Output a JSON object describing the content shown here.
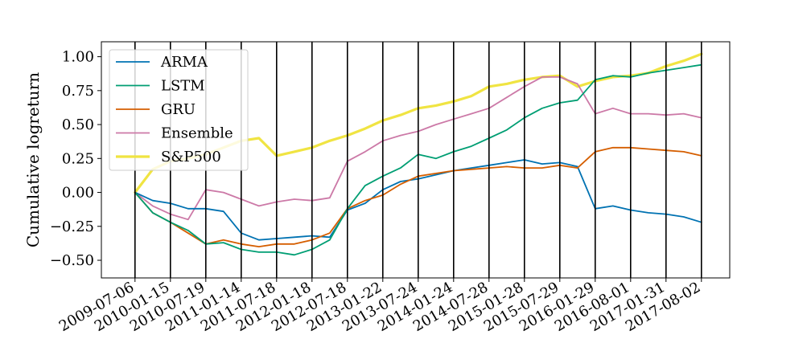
{
  "chart_data": {
    "type": "line",
    "ylabel": "Cumulative logreturn",
    "xlabel": "",
    "title": "",
    "ylim": [
      -0.63,
      1.11
    ],
    "yticks": [
      -0.5,
      -0.25,
      0.0,
      0.25,
      0.5,
      0.75,
      1.0
    ],
    "ytick_labels": [
      "−0.50",
      "−0.25",
      "0.00",
      "0.25",
      "0.50",
      "0.75",
      "1.00"
    ],
    "x_dates": [
      "2009-07-06",
      "2010-01-15",
      "2010-07-19",
      "2011-01-14",
      "2011-07-18",
      "2012-01-18",
      "2012-07-18",
      "2013-01-22",
      "2013-07-24",
      "2014-01-24",
      "2014-07-28",
      "2015-01-28",
      "2015-07-29",
      "2016-01-29",
      "2016-08-01",
      "2017-01-31",
      "2017-08-02"
    ],
    "xlim": [
      -0.95,
      16.8
    ],
    "vlines": true,
    "grid": false,
    "legend_position": "upper-left",
    "series": [
      {
        "name": "ARMA",
        "color": "#0072b2",
        "x": [
          0,
          0.5,
          1,
          1.5,
          2,
          2.5,
          3,
          3.5,
          4,
          4.5,
          5,
          5.5,
          6,
          6.5,
          7,
          7.5,
          8,
          8.5,
          9,
          9.5,
          10,
          10.5,
          11,
          11.5,
          12,
          12.5,
          13,
          13.5,
          14,
          14.5,
          15,
          15.5,
          16
        ],
        "y": [
          0.0,
          -0.06,
          -0.08,
          -0.12,
          -0.12,
          -0.14,
          -0.3,
          -0.35,
          -0.34,
          -0.33,
          -0.32,
          -0.33,
          -0.13,
          -0.08,
          0.02,
          0.08,
          0.1,
          0.13,
          0.16,
          0.18,
          0.2,
          0.22,
          0.24,
          0.21,
          0.22,
          0.19,
          -0.12,
          -0.1,
          -0.13,
          -0.15,
          -0.16,
          -0.18,
          -0.22
        ]
      },
      {
        "name": "LSTM",
        "color": "#009e73",
        "x": [
          0,
          0.5,
          1,
          1.5,
          2,
          2.5,
          3,
          3.5,
          4,
          4.5,
          5,
          5.5,
          6,
          6.5,
          7,
          7.5,
          8,
          8.5,
          9,
          9.5,
          10,
          10.5,
          11,
          11.5,
          12,
          12.5,
          13,
          13.5,
          14,
          14.5,
          15,
          15.5,
          16
        ],
        "y": [
          0.0,
          -0.15,
          -0.22,
          -0.28,
          -0.38,
          -0.37,
          -0.42,
          -0.44,
          -0.44,
          -0.46,
          -0.42,
          -0.35,
          -0.12,
          0.05,
          0.12,
          0.18,
          0.28,
          0.25,
          0.3,
          0.34,
          0.4,
          0.46,
          0.55,
          0.62,
          0.66,
          0.68,
          0.83,
          0.86,
          0.85,
          0.88,
          0.9,
          0.92,
          0.94
        ]
      },
      {
        "name": "GRU",
        "color": "#d55e00",
        "x": [
          0,
          0.5,
          1,
          1.5,
          2,
          2.5,
          3,
          3.5,
          4,
          4.5,
          5,
          5.5,
          6,
          6.5,
          7,
          7.5,
          8,
          8.5,
          9,
          9.5,
          10,
          10.5,
          11,
          11.5,
          12,
          12.5,
          13,
          13.5,
          14,
          14.5,
          15,
          15.5,
          16
        ],
        "y": [
          0.0,
          -0.15,
          -0.22,
          -0.3,
          -0.38,
          -0.35,
          -0.38,
          -0.4,
          -0.38,
          -0.38,
          -0.35,
          -0.3,
          -0.12,
          -0.06,
          -0.02,
          0.06,
          0.12,
          0.14,
          0.16,
          0.17,
          0.18,
          0.19,
          0.18,
          0.18,
          0.2,
          0.18,
          0.3,
          0.33,
          0.33,
          0.32,
          0.31,
          0.3,
          0.27
        ]
      },
      {
        "name": "Ensemble",
        "color": "#cc79a7",
        "x": [
          0,
          0.5,
          1,
          1.5,
          2,
          2.5,
          3,
          3.5,
          4,
          4.5,
          5,
          5.5,
          6,
          6.5,
          7,
          7.5,
          8,
          8.5,
          9,
          9.5,
          10,
          10.5,
          11,
          11.5,
          12,
          12.5,
          13,
          13.5,
          14,
          14.5,
          15,
          15.5,
          16
        ],
        "y": [
          0.0,
          -0.1,
          -0.16,
          -0.2,
          0.02,
          0.0,
          -0.05,
          -0.1,
          -0.07,
          -0.05,
          -0.06,
          -0.04,
          0.23,
          0.3,
          0.38,
          0.42,
          0.45,
          0.5,
          0.54,
          0.58,
          0.62,
          0.7,
          0.78,
          0.85,
          0.85,
          0.8,
          0.58,
          0.62,
          0.58,
          0.58,
          0.57,
          0.58,
          0.55
        ]
      },
      {
        "name": "S&P500",
        "color": "#f0e442",
        "x": [
          0,
          0.5,
          1,
          1.5,
          2,
          2.5,
          3,
          3.5,
          4,
          4.5,
          5,
          5.5,
          6,
          6.5,
          7,
          7.5,
          8,
          8.5,
          9,
          9.5,
          10,
          10.5,
          11,
          11.5,
          12,
          12.5,
          13,
          13.5,
          14,
          14.5,
          15,
          15.5,
          16
        ],
        "y": [
          0.0,
          0.17,
          0.23,
          0.25,
          0.28,
          0.33,
          0.38,
          0.4,
          0.27,
          0.3,
          0.33,
          0.38,
          0.42,
          0.47,
          0.53,
          0.57,
          0.62,
          0.64,
          0.67,
          0.71,
          0.78,
          0.8,
          0.83,
          0.85,
          0.86,
          0.78,
          0.82,
          0.85,
          0.86,
          0.88,
          0.93,
          0.97,
          1.02
        ]
      }
    ]
  }
}
